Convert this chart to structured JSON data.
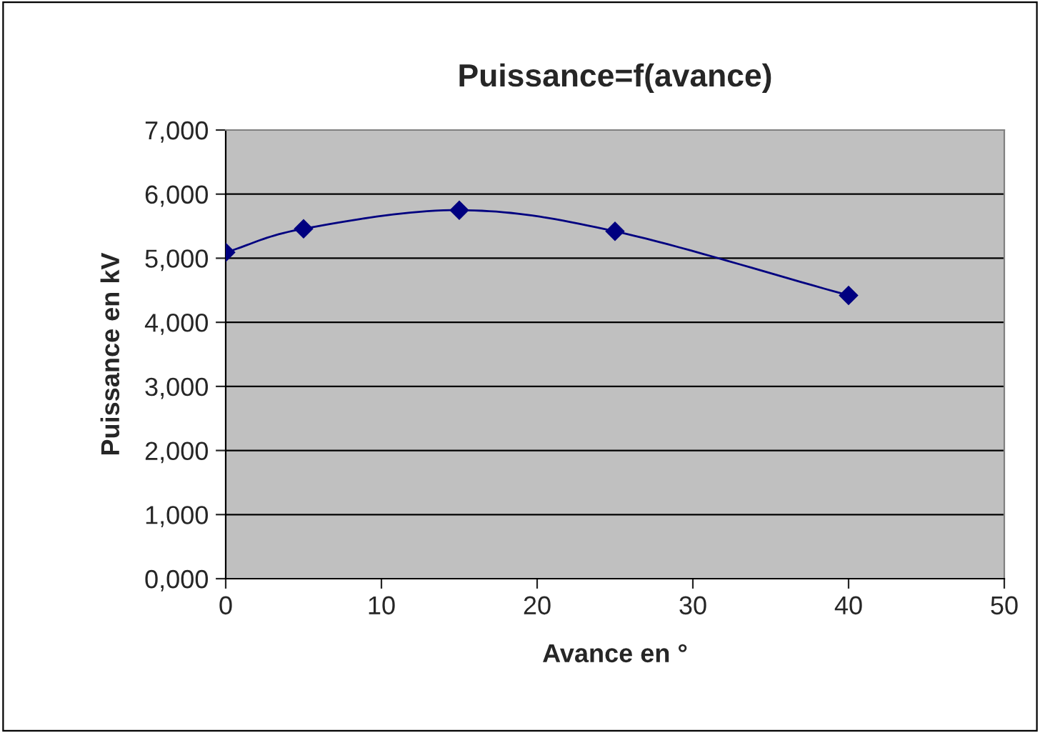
{
  "chart_data": {
    "type": "line",
    "title": "Puissance=f(avance)",
    "xlabel": "Avance en °",
    "ylabel": "Puissance en kV",
    "x": [
      0,
      5,
      15,
      25,
      40
    ],
    "series": [
      {
        "color": "#000080",
        "values": [
          5090,
          5460,
          5750,
          5420,
          4420
        ]
      }
    ],
    "xlim": [
      0,
      50
    ],
    "xticks": [
      0,
      10,
      20,
      30,
      40,
      50
    ],
    "ylim": [
      0,
      7000
    ],
    "yticks": [
      {
        "value": 0,
        "label": "0,000"
      },
      {
        "value": 1000,
        "label": "1,000"
      },
      {
        "value": 2000,
        "label": "2,000"
      },
      {
        "value": 3000,
        "label": "3,000"
      },
      {
        "value": 4000,
        "label": "4,000"
      },
      {
        "value": 5000,
        "label": "5,000"
      },
      {
        "value": 6000,
        "label": "6,000"
      },
      {
        "value": 7000,
        "label": "7,000"
      }
    ],
    "grid": "y",
    "marker": "diamond",
    "line_style": "solid",
    "legend": false
  }
}
